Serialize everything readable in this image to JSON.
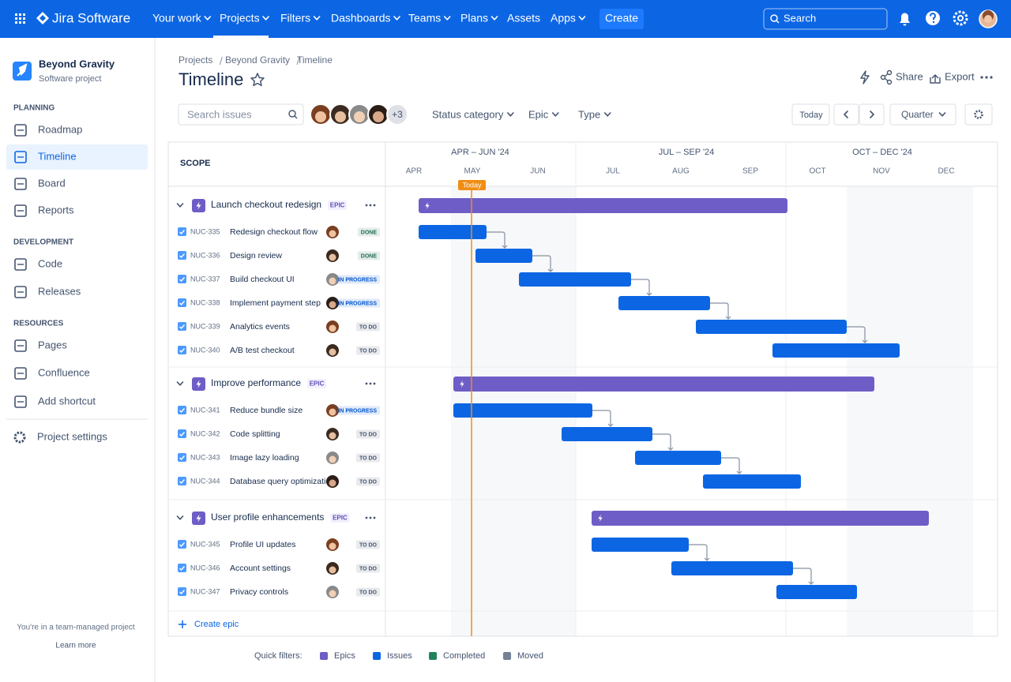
{
  "nav": {
    "product": "Jira Software",
    "items": [
      "Your work",
      "Projects",
      "Filters",
      "Dashboards",
      "Teams",
      "Plans",
      "Assets",
      "Apps"
    ],
    "create": "Create",
    "search": "Search"
  },
  "sidebar": {
    "project": "Beyond Gravity",
    "project_type": "Software project",
    "sections": [
      {
        "title": "PLANNING",
        "items": [
          "Roadmap",
          "Timeline",
          "Board",
          "Reports"
        ]
      },
      {
        "title": "DEVELOPMENT",
        "items": [
          "Code",
          "Releases"
        ]
      },
      {
        "title": "RESOURCES",
        "items": [
          "Pages",
          "Confluence",
          "Add shortcut"
        ]
      }
    ],
    "settings": "Project settings",
    "footer": "You're in a team-managed project",
    "learn_more": "Learn more"
  },
  "breadcrumbs": [
    "Projects",
    "Beyond Gravity",
    "Timeline"
  ],
  "title": "Timeline",
  "actions": [
    "Share",
    "Export"
  ],
  "toolbar": {
    "search": "Search issues",
    "more_assignees": "+3",
    "filters": [
      "Status category",
      "Epic",
      "Type"
    ],
    "today": "Today",
    "view": "Quarter"
  },
  "timeline": {
    "scope": "SCOPE",
    "quarters": [
      "APR – JUN '24",
      "JUL – SEP '24",
      "OCT – DEC '24"
    ],
    "months": [
      "APR",
      "MAY",
      "JUN",
      "JUL",
      "AUG",
      "SEP",
      "OCT",
      "NOV",
      "DEC"
    ],
    "today": "Today",
    "epics": [
      {
        "name": "Launch checkout redesign",
        "tag": "EPIC",
        "issues": [
          {
            "key": "NUC-335",
            "title": "Redesign checkout flow",
            "status": {
              "label": "DONE",
              "color": "#216e4e"
            }
          },
          {
            "key": "NUC-336",
            "title": "Design review",
            "status": {
              "label": "DONE",
              "color": "#216e4e"
            }
          },
          {
            "key": "NUC-337",
            "title": "Build checkout UI",
            "status": {
              "label": "IN PROGRESS",
              "color": "#0055cc"
            }
          },
          {
            "key": "NUC-338",
            "title": "Implement payment step",
            "status": {
              "label": "IN PROGRESS",
              "color": "#0055cc"
            }
          },
          {
            "key": "NUC-339",
            "title": "Analytics events",
            "status": {
              "label": "TO DO",
              "color": "#44546f"
            }
          },
          {
            "key": "NUC-340",
            "title": "A/B test checkout",
            "status": {
              "label": "TO DO",
              "color": "#44546f"
            }
          }
        ]
      },
      {
        "name": "Improve performance",
        "tag": "EPIC",
        "issues": [
          {
            "key": "NUC-341",
            "title": "Reduce bundle size",
            "status": {
              "label": "IN PROGRESS",
              "color": "#0055cc"
            }
          },
          {
            "key": "NUC-342",
            "title": "Code splitting",
            "status": {
              "label": "TO DO",
              "color": "#44546f"
            }
          },
          {
            "key": "NUC-343",
            "title": "Image lazy loading",
            "status": {
              "label": "TO DO",
              "color": "#44546f"
            }
          },
          {
            "key": "NUC-344",
            "title": "Database query optimization",
            "status": {
              "label": "TO DO",
              "color": "#44546f"
            }
          }
        ]
      },
      {
        "name": "User profile enhancements",
        "tag": "EPIC",
        "issues": [
          {
            "key": "NUC-345",
            "title": "Profile UI updates",
            "status": {
              "label": "TO DO",
              "color": "#44546f"
            }
          },
          {
            "key": "NUC-346",
            "title": "Account settings",
            "status": {
              "label": "TO DO",
              "color": "#44546f"
            }
          },
          {
            "key": "NUC-347",
            "title": "Privacy controls",
            "status": {
              "label": "TO DO",
              "color": "#44546f"
            }
          }
        ]
      }
    ],
    "create_epic": "Create epic"
  },
  "legend": {
    "title": "Quick filters:",
    "items": [
      {
        "name": "Epics",
        "color": "#6e5dc6"
      },
      {
        "name": "Issues",
        "color": "#0c66e4"
      },
      {
        "name": "Completed",
        "color": "#1f845a"
      },
      {
        "name": "Moved",
        "color": "#758195"
      }
    ]
  }
}
